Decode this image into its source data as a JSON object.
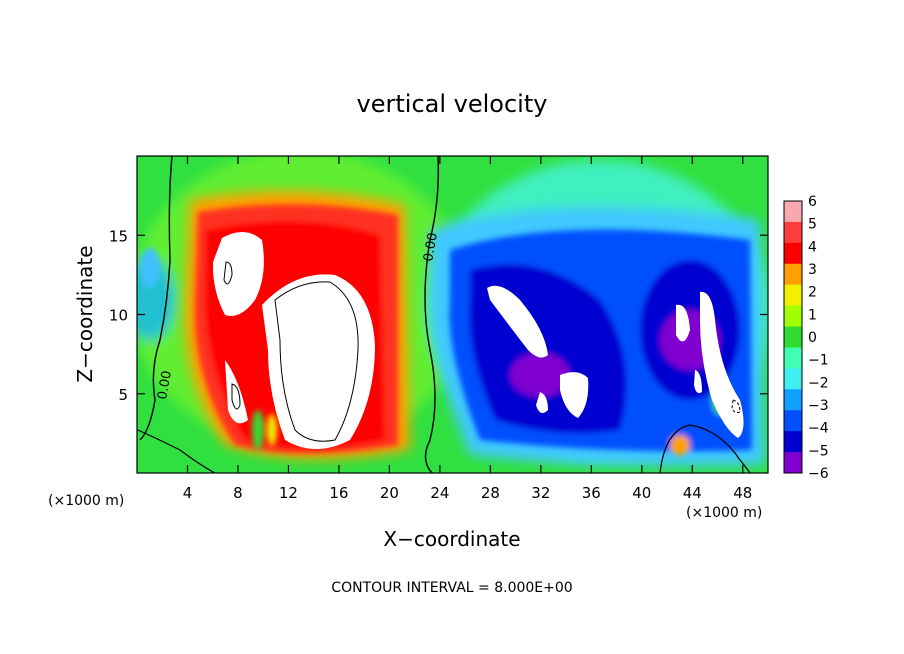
{
  "chart_data": {
    "type": "heatmap",
    "title": "vertical velocity",
    "xlabel": "X−coordinate",
    "ylabel": "Z−coordinate",
    "x_unit_left": "(×1000 m)",
    "x_unit_right": "(×1000 m)",
    "footer": "CONTOUR INTERVAL = 8.000E+00",
    "xlim": [
      0,
      50
    ],
    "ylim": [
      0,
      20
    ],
    "x_ticks": [
      4,
      8,
      12,
      16,
      20,
      24,
      28,
      32,
      36,
      40,
      44,
      48
    ],
    "x_tick_labels": [
      "4",
      "8",
      "12",
      "16",
      "20",
      "24",
      "28",
      "32",
      "36",
      "40",
      "44",
      "48"
    ],
    "y_ticks": [
      5,
      10,
      15
    ],
    "y_tick_labels": [
      "5",
      "10",
      "15"
    ],
    "contour_labels": [
      "0.00",
      "0.00"
    ],
    "colorbar": {
      "levels": [
        6,
        5,
        4,
        3,
        2,
        1,
        0,
        -1,
        -2,
        -3,
        -4,
        -5,
        -6
      ],
      "labels": [
        "6",
        "5",
        "4",
        "3",
        "2",
        "1",
        "0",
        "−1",
        "−2",
        "−3",
        "−4",
        "−5",
        "−6"
      ],
      "colors": [
        "#f7a8b0",
        "#ff3c3c",
        "#ff0000",
        "#ffa000",
        "#f0f000",
        "#a0ff00",
        "#30dc30",
        "#40ffb0",
        "#40f0f0",
        "#10a0ff",
        "#0050ff",
        "#0000d0",
        "#8000d0"
      ]
    },
    "colors": {
      "updraft_core": "#ffffff",
      "downdraft_core": "#ffffff",
      "background": "#30e040"
    }
  }
}
